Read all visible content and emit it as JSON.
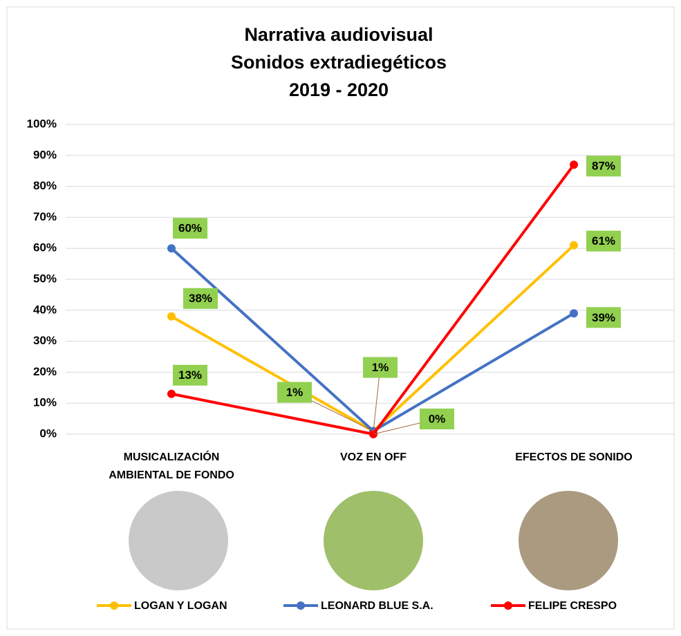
{
  "chart_data": {
    "type": "line",
    "title": "Narrativa audiovisual",
    "subtitle": "Sonidos extradiegéticos",
    "period": "2019 - 2020",
    "categories": [
      "MUSICALIZACIÓN AMBIENTAL DE FONDO",
      "VOZ EN OFF",
      "EFECTOS DE SONIDO"
    ],
    "series": [
      {
        "name": "LOGAN Y LOGAN",
        "color": "#FFC000",
        "values": [
          38,
          1,
          61
        ],
        "value_labels": [
          "38%",
          "1%",
          "61%"
        ]
      },
      {
        "name": "LEONARD BLUE S.A.",
        "color": "#4472C4",
        "values": [
          60,
          1,
          39
        ],
        "value_labels": [
          "60%",
          "1%",
          "39%"
        ]
      },
      {
        "name": "FELIPE CRESPO",
        "color": "#FF0000",
        "values": [
          13,
          0,
          87
        ],
        "value_labels": [
          "13%",
          "0%",
          "87%"
        ]
      }
    ],
    "ylim": [
      0,
      100
    ],
    "yticks": [
      {
        "value": 0,
        "label": "0%"
      },
      {
        "value": 10,
        "label": "10%"
      },
      {
        "value": 20,
        "label": "20%"
      },
      {
        "value": 30,
        "label": "30%"
      },
      {
        "value": 40,
        "label": "40%"
      },
      {
        "value": 50,
        "label": "50%"
      },
      {
        "value": 60,
        "label": "60%"
      },
      {
        "value": 70,
        "label": "70%"
      },
      {
        "value": 80,
        "label": "80%"
      },
      {
        "value": 90,
        "label": "90%"
      },
      {
        "value": 100,
        "label": "100%"
      }
    ],
    "grid": true,
    "legend": "bottom",
    "label_color": "#92D050"
  }
}
